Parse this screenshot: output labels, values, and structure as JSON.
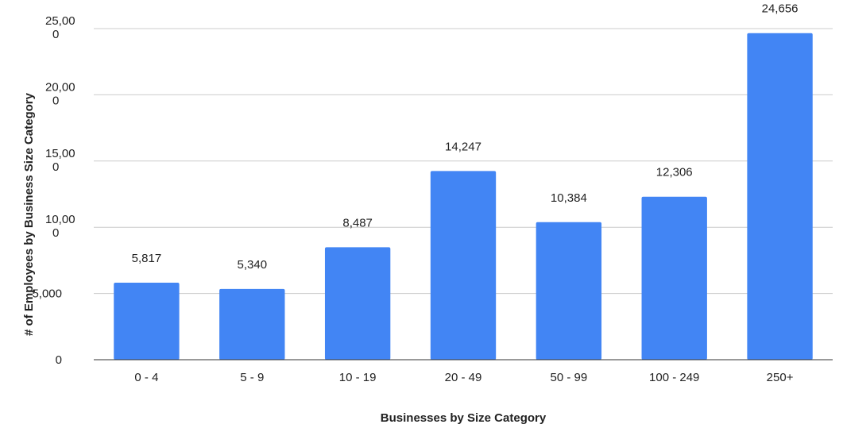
{
  "chart_data": {
    "type": "bar",
    "title": "",
    "xlabel": "Businesses by Size Category",
    "ylabel": "# of Employees by Business Size Category",
    "categories": [
      "0 - 4",
      "5 - 9",
      "10 - 19",
      "20 - 49",
      "50 - 99",
      "100 - 249",
      "250+"
    ],
    "values": [
      5817,
      5340,
      8487,
      14247,
      10384,
      12306,
      24656
    ],
    "data_labels": [
      "5,817",
      "5,340",
      "8,487",
      "14,247",
      "10,384",
      "12,306",
      "24,656"
    ],
    "ylim": [
      0,
      25000
    ],
    "yticks": [
      0,
      5000,
      10000,
      15000,
      20000,
      25000
    ],
    "ytick_labels": [
      [
        "0"
      ],
      [
        "5,000"
      ],
      [
        "10,00",
        "0"
      ],
      [
        "15,00",
        "0"
      ],
      [
        "20,00",
        "0"
      ],
      [
        "25,00",
        "0"
      ]
    ],
    "grid": true,
    "legend": "none",
    "colors": {
      "bar": "#4285f4",
      "grid": "#cccccc",
      "axis": "#333333"
    }
  }
}
